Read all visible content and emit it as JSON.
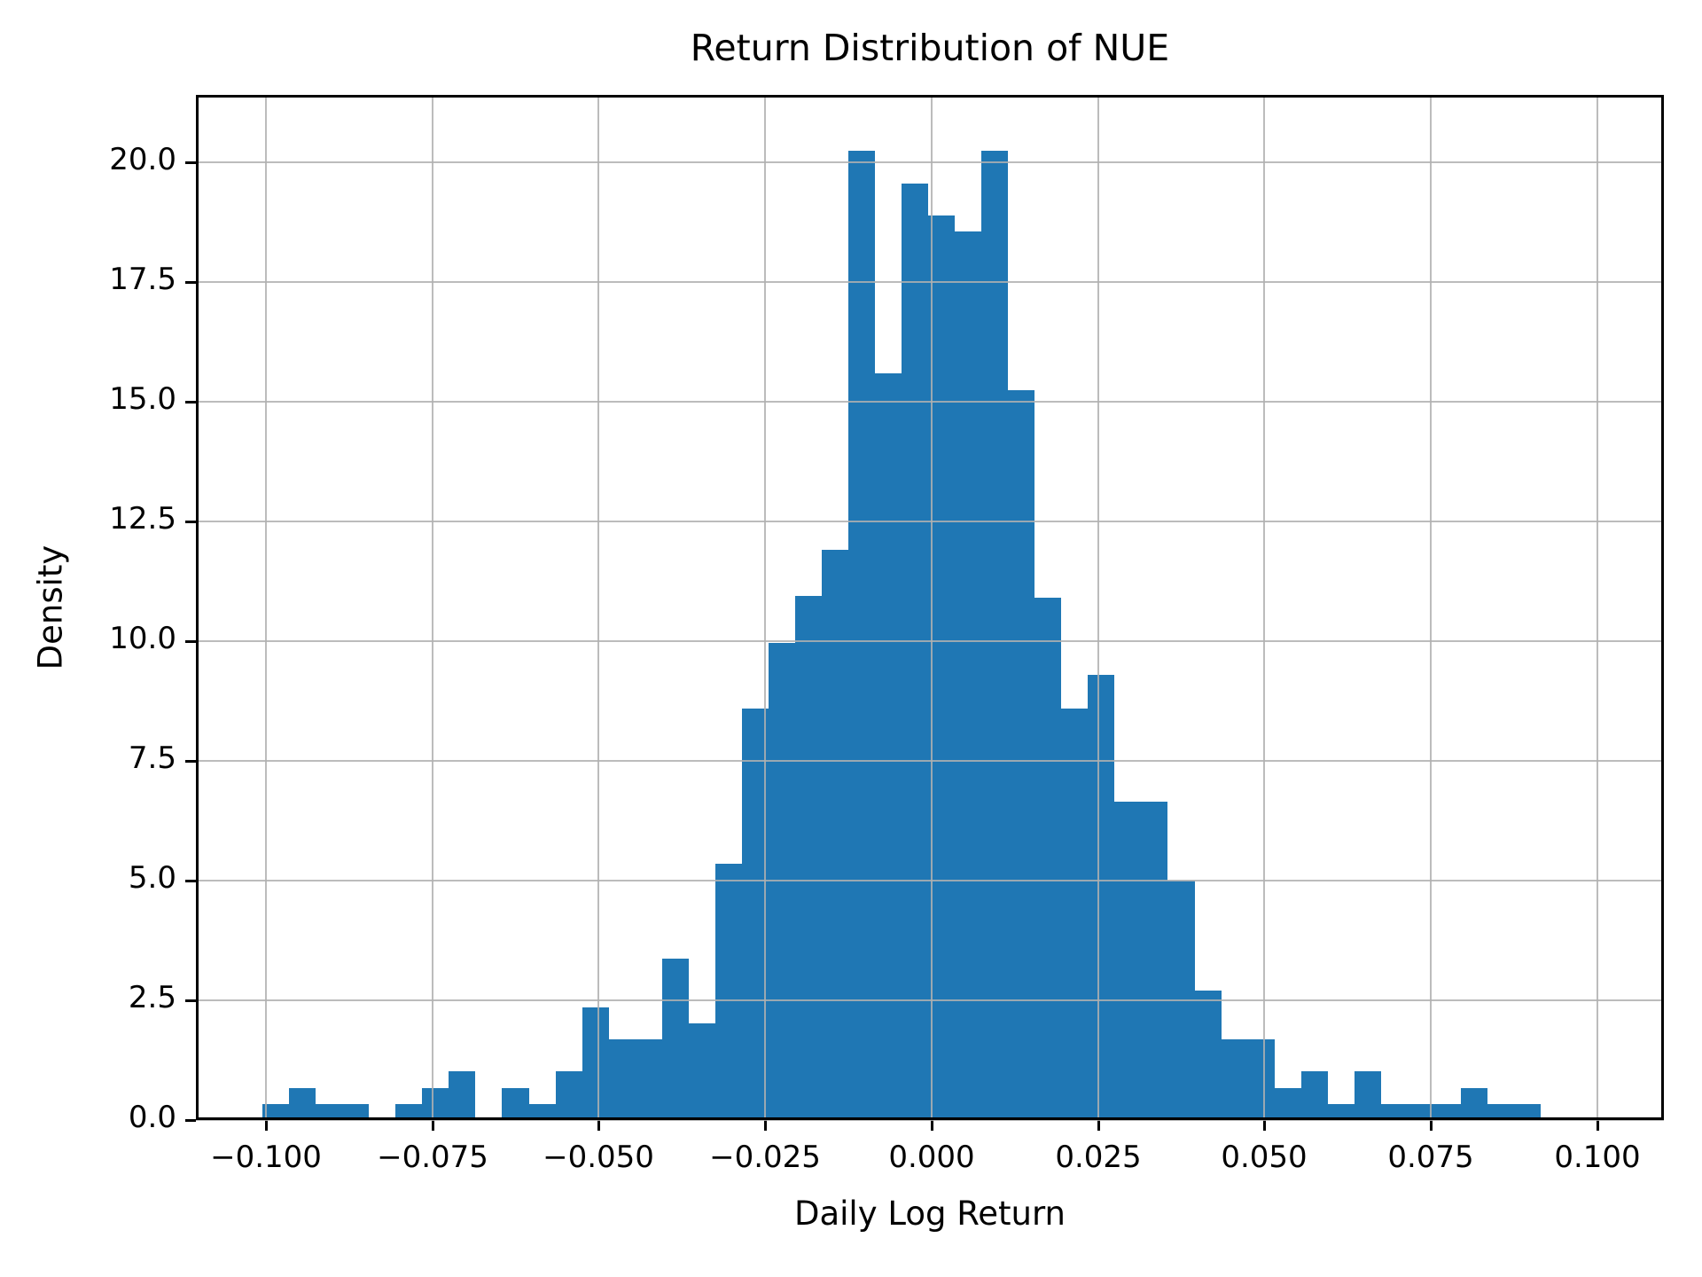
{
  "chart_data": {
    "type": "bar",
    "subtype": "histogram",
    "title": "Return Distribution of NUE",
    "xlabel": "Daily Log Return",
    "ylabel": "Density",
    "grid": "on",
    "legend": "none",
    "bin_start": -0.1005,
    "bin_width": 0.004,
    "densities": [
      0.34,
      0.67,
      0.34,
      0.34,
      0,
      0.34,
      0.67,
      1.01,
      0,
      0.67,
      0.34,
      1.01,
      2.36,
      1.69,
      1.69,
      3.37,
      2.02,
      5.35,
      8.6,
      9.97,
      10.95,
      11.9,
      20.25,
      15.6,
      19.55,
      18.9,
      18.55,
      20.25,
      15.25,
      10.9,
      8.6,
      9.3,
      6.65,
      6.65,
      5.0,
      2.7,
      1.69,
      1.69,
      0.67,
      1.01,
      0.34,
      1.01,
      0.34,
      0.34,
      0.34,
      0.67,
      0.34,
      0.34
    ],
    "xlim": [
      -0.1105,
      0.11
    ],
    "ylim": [
      0,
      21.41
    ],
    "x_ticks": [
      {
        "value": -0.1,
        "label": "−0.100"
      },
      {
        "value": -0.075,
        "label": "−0.075"
      },
      {
        "value": -0.05,
        "label": "−0.050"
      },
      {
        "value": -0.025,
        "label": "−0.025"
      },
      {
        "value": 0.0,
        "label": "0.000"
      },
      {
        "value": 0.025,
        "label": "0.025"
      },
      {
        "value": 0.05,
        "label": "0.050"
      },
      {
        "value": 0.075,
        "label": "0.075"
      },
      {
        "value": 0.1,
        "label": "0.100"
      }
    ],
    "y_ticks": [
      {
        "value": 0.0,
        "label": "0.0"
      },
      {
        "value": 2.5,
        "label": "2.5"
      },
      {
        "value": 5.0,
        "label": "5.0"
      },
      {
        "value": 7.5,
        "label": "7.5"
      },
      {
        "value": 10.0,
        "label": "10.0"
      },
      {
        "value": 12.5,
        "label": "12.5"
      },
      {
        "value": 15.0,
        "label": "15.0"
      },
      {
        "value": 17.5,
        "label": "17.5"
      },
      {
        "value": 20.0,
        "label": "20.0"
      }
    ],
    "colors": {
      "bar": "#1f77b4",
      "grid": "#b0b0b0",
      "spine": "#000000",
      "text": "#000000",
      "background": "#ffffff"
    }
  }
}
